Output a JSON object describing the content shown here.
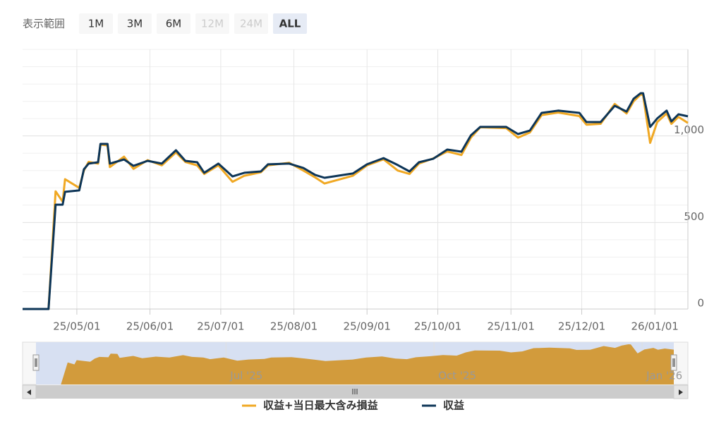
{
  "chart_data": {
    "type": "line",
    "range_selector": {
      "label": "表示範囲",
      "buttons": [
        {
          "text": "1M",
          "state": "enabled"
        },
        {
          "text": "3M",
          "state": "enabled"
        },
        {
          "text": "6M",
          "state": "enabled"
        },
        {
          "text": "12M",
          "state": "disabled"
        },
        {
          "text": "24M",
          "state": "disabled"
        },
        {
          "text": "ALL",
          "state": "selected"
        }
      ]
    },
    "x": [
      "2025-04-08",
      "2025-04-19",
      "2025-04-22",
      "2025-04-25",
      "2025-04-26",
      "2025-05-02",
      "2025-05-04",
      "2025-05-06",
      "2025-05-10",
      "2025-05-11",
      "2025-05-14",
      "2025-05-15",
      "2025-05-21",
      "2025-05-25",
      "2025-05-31",
      "2025-06-06",
      "2025-06-12",
      "2025-06-16",
      "2025-06-21",
      "2025-06-24",
      "2025-06-30",
      "2025-07-06",
      "2025-07-11",
      "2025-07-18",
      "2025-07-21",
      "2025-07-30",
      "2025-08-05",
      "2025-08-10",
      "2025-08-14",
      "2025-08-26",
      "2025-09-01",
      "2025-09-08",
      "2025-09-14",
      "2025-09-19",
      "2025-09-23",
      "2025-09-29",
      "2025-10-05",
      "2025-10-11",
      "2025-10-15",
      "2025-10-19",
      "2025-10-30",
      "2025-11-04",
      "2025-11-09",
      "2025-11-14",
      "2025-11-21",
      "2025-11-30",
      "2025-12-03",
      "2025-12-09",
      "2025-12-15",
      "2025-12-20",
      "2025-12-23",
      "2025-12-26",
      "2025-12-27",
      "2025-12-30",
      "2026-01-02",
      "2026-01-06",
      "2026-01-08",
      "2026-01-11",
      "2026-01-15"
    ],
    "series": [
      {
        "name": "収益+当日最大含み損益",
        "color": "#f0a823",
        "values": [
          0,
          0,
          680,
          620,
          750,
          700,
          800,
          850,
          840,
          950,
          945,
          820,
          880,
          810,
          860,
          830,
          905,
          850,
          830,
          780,
          830,
          735,
          770,
          790,
          830,
          845,
          800,
          760,
          725,
          770,
          830,
          865,
          800,
          780,
          840,
          870,
          910,
          890,
          990,
          1050,
          1045,
          990,
          1020,
          1120,
          1135,
          1115,
          1065,
          1070,
          1185,
          1130,
          1200,
          1240,
          1235,
          960,
          1080,
          1130,
          1070,
          1110,
          1075
        ]
      },
      {
        "name": "収益",
        "color": "#0d3557",
        "values": [
          0,
          0,
          603,
          603,
          677,
          685,
          807,
          840,
          848,
          954,
          954,
          840,
          864,
          827,
          856,
          840,
          917,
          856,
          848,
          787,
          840,
          766,
          787,
          795,
          836,
          840,
          815,
          775,
          758,
          783,
          836,
          872,
          832,
          795,
          848,
          868,
          921,
          909,
          1003,
          1052,
          1052,
          1011,
          1031,
          1133,
          1146,
          1133,
          1080,
          1080,
          1174,
          1141,
          1215,
          1247,
          1247,
          1052,
          1101,
          1146,
          1084,
          1125,
          1113
        ]
      }
    ],
    "xlim": [
      "2025-04-08",
      "2026-01-15"
    ],
    "xticks": [
      {
        "value": "2025-05-01",
        "label": "25/05/01"
      },
      {
        "value": "2025-06-01",
        "label": "25/06/01"
      },
      {
        "value": "2025-07-01",
        "label": "25/07/01"
      },
      {
        "value": "2025-08-01",
        "label": "25/08/01"
      },
      {
        "value": "2025-09-01",
        "label": "25/09/01"
      },
      {
        "value": "2025-10-01",
        "label": "25/10/01"
      },
      {
        "value": "2025-11-01",
        "label": "25/11/01"
      },
      {
        "value": "2025-12-01",
        "label": "25/12/01"
      },
      {
        "value": "2026-01-01",
        "label": "26/01/01"
      }
    ],
    "ylim": [
      0,
      1500
    ],
    "yticks": [
      0,
      500,
      {
        "value": 1000,
        "label": "1,000"
      }
    ],
    "yminorticks": [
      100,
      200,
      300,
      400,
      600,
      700,
      800,
      900,
      1100,
      1200,
      1300,
      1400,
      1500
    ],
    "grid": true,
    "navigator": {
      "color": "#d29b3c",
      "xticks": [
        {
          "value": "2025-07-01",
          "label": "Jul '25"
        },
        {
          "value": "2025-10-01",
          "label": "Oct '25"
        },
        {
          "value": "2026-01-01",
          "label": "Jan '26"
        }
      ]
    }
  }
}
